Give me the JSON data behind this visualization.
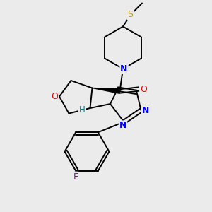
{
  "bg_color": "#ebebeb",
  "bond_lw": 1.4,
  "figsize": [
    3.0,
    3.0
  ],
  "dpi": 100,
  "xlim": [
    0,
    10
  ],
  "ylim": [
    0,
    10
  ]
}
